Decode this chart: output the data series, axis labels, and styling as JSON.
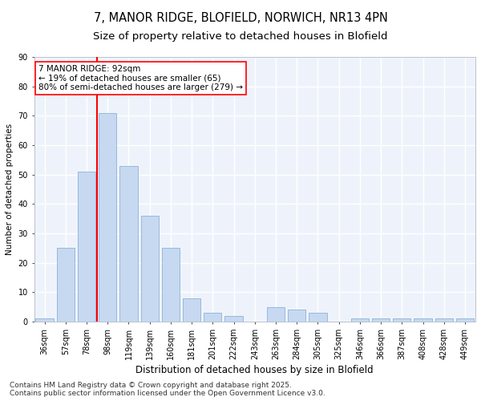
{
  "title_line1": "7, MANOR RIDGE, BLOFIELD, NORWICH, NR13 4PN",
  "title_line2": "Size of property relative to detached houses in Blofield",
  "xlabel": "Distribution of detached houses by size in Blofield",
  "ylabel": "Number of detached properties",
  "bar_labels": [
    "36sqm",
    "57sqm",
    "78sqm",
    "98sqm",
    "119sqm",
    "139sqm",
    "160sqm",
    "181sqm",
    "201sqm",
    "222sqm",
    "243sqm",
    "263sqm",
    "284sqm",
    "305sqm",
    "325sqm",
    "346sqm",
    "366sqm",
    "387sqm",
    "408sqm",
    "428sqm",
    "449sqm"
  ],
  "bar_values": [
    1,
    25,
    51,
    71,
    53,
    36,
    25,
    8,
    3,
    2,
    0,
    5,
    4,
    3,
    0,
    1,
    1,
    1,
    1,
    1,
    1
  ],
  "bar_color": "#c6d9f1",
  "bar_edge_color": "#7fa7d0",
  "vline_color": "red",
  "vline_pos": 2.5,
  "annotation_text": "7 MANOR RIDGE: 92sqm\n← 19% of detached houses are smaller (65)\n80% of semi-detached houses are larger (279) →",
  "annotation_box_color": "white",
  "annotation_box_edge_color": "red",
  "ylim": [
    0,
    90
  ],
  "yticks": [
    0,
    10,
    20,
    30,
    40,
    50,
    60,
    70,
    80,
    90
  ],
  "background_color": "#eef3fb",
  "grid_color": "#ffffff",
  "footer_text": "Contains HM Land Registry data © Crown copyright and database right 2025.\nContains public sector information licensed under the Open Government Licence v3.0.",
  "title_fontsize": 10.5,
  "subtitle_fontsize": 9.5,
  "xlabel_fontsize": 8.5,
  "ylabel_fontsize": 7.5,
  "tick_fontsize": 7,
  "annotation_fontsize": 7.5,
  "footer_fontsize": 6.5
}
